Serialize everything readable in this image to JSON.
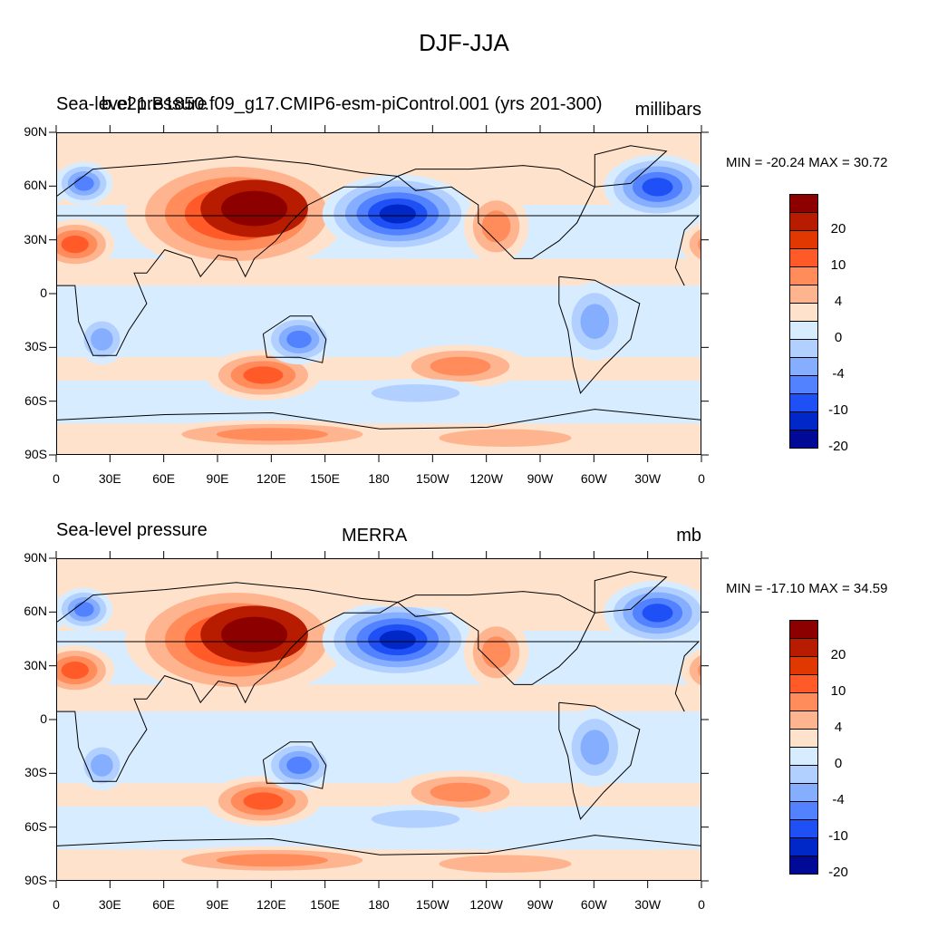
{
  "figure": {
    "title": "DJF-JJA"
  },
  "panels": [
    {
      "id": "model",
      "left_title": "Sea-level pressure",
      "center_title": "b.e21.B1850.f09_g17.CMIP6-esm-piControl.001 (yrs 201-300)",
      "units": "millibars",
      "stats": "MIN = -20.24 MAX =  30.72"
    },
    {
      "id": "obs",
      "left_title": "Sea-level pressure",
      "center_title": "MERRA",
      "units": "mb",
      "stats": "MIN = -17.10 MAX =  34.59"
    }
  ],
  "colorbar": {
    "labels": [
      "20",
      "10",
      "4",
      "0",
      "-4",
      "-10",
      "-20"
    ],
    "colors": [
      "#8c0000",
      "#b81c00",
      "#e03800",
      "#ff5a28",
      "#ff8c5a",
      "#ffb490",
      "#ffe2cc",
      "#d8ecff",
      "#b2d0ff",
      "#86aeff",
      "#5282ff",
      "#1e50f5",
      "#0028c8",
      "#000a96"
    ]
  },
  "axes": {
    "lat_ticks": [
      "90N",
      "60N",
      "30N",
      "0",
      "30S",
      "60S",
      "90S"
    ],
    "lon_ticks": [
      "0",
      "30E",
      "60E",
      "90E",
      "120E",
      "150E",
      "180",
      "150W",
      "120W",
      "90W",
      "60W",
      "30W",
      "0"
    ]
  },
  "map": {
    "projection": "cylindrical-equidistant",
    "variable": "sea-level pressure difference"
  }
}
